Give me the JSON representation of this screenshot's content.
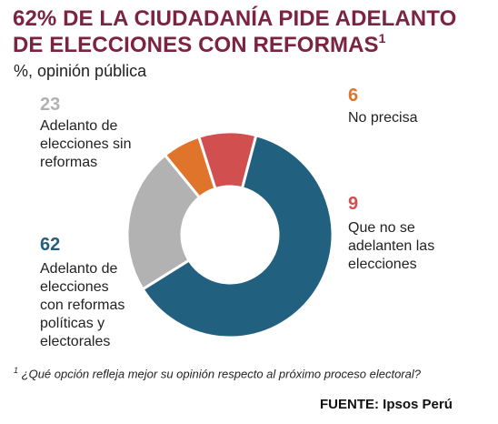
{
  "title": "62% DE LA CIUDADANÍA PIDE ADELANTO DE ELECCIONES CON REFORMAS",
  "title_sup": "1",
  "subtitle": "%, opinión pública",
  "chart_data": {
    "type": "pie",
    "donut": true,
    "slices": [
      {
        "label": "Adelanto de elecciones con reformas políticas y electorales",
        "label_lines": [
          "Adelanto de",
          "elecciones",
          "con reformas",
          "políticas y",
          "electorales"
        ],
        "value": 62,
        "color": "#226080"
      },
      {
        "label": "Adelanto de elecciones sin reformas",
        "label_lines": [
          "Adelanto de",
          "elecciones sin",
          "reformas"
        ],
        "value": 23,
        "color": "#b2b2b2"
      },
      {
        "label": "No precisa",
        "label_lines": [
          "No precisa"
        ],
        "value": 6,
        "color": "#e1742b"
      },
      {
        "label": "Que no se adelanten las elecciones",
        "label_lines": [
          "Que no se",
          "adelanten las",
          "elecciones"
        ],
        "value": 9,
        "color": "#d24f4f"
      }
    ]
  },
  "footnote_sup": "1",
  "footnote": "¿Qué opción refleja mejor su opinión respecto al próximo proceso electoral?",
  "source": "FUENTE: Ipsos Perú"
}
